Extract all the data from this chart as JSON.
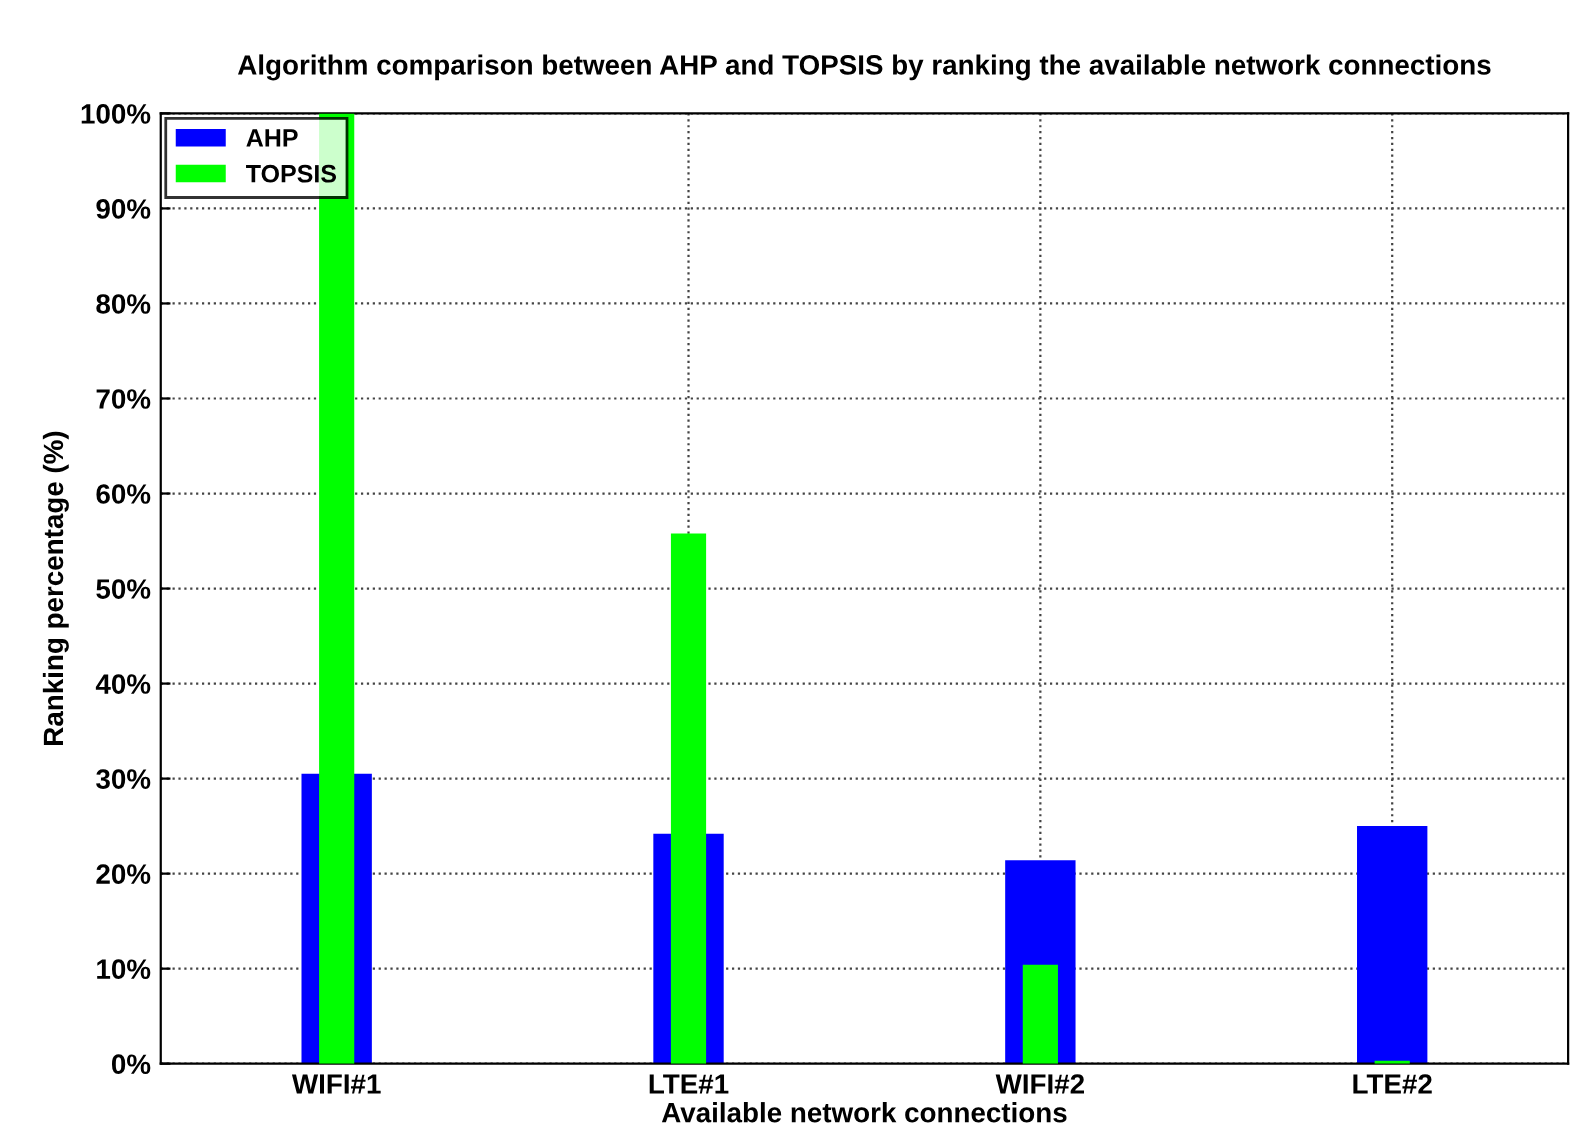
{
  "chart_data": {
    "type": "bar",
    "title": "Algorithm comparison between AHP and TOPSIS by ranking the available network connections",
    "xlabel": "Available network connections",
    "ylabel": "Ranking percentage (%)",
    "categories": [
      "WIFI#1",
      "LTE#1",
      "WIFI#2",
      "LTE#2"
    ],
    "series": [
      {
        "name": "AHP",
        "color": "#0000ff",
        "values": [
          30.5,
          24.2,
          21.4,
          25
        ]
      },
      {
        "name": "TOPSIS",
        "color": "#00ff00",
        "values": [
          100,
          55.8,
          10.4,
          0.3
        ]
      }
    ],
    "ylim": [
      0,
      100
    ],
    "yticks": [
      {
        "value": 0,
        "label": "0%"
      },
      {
        "value": 10,
        "label": "10%"
      },
      {
        "value": 20,
        "label": "20%"
      },
      {
        "value": 30,
        "label": "30%"
      },
      {
        "value": 40,
        "label": "40%"
      },
      {
        "value": 50,
        "label": "50%"
      },
      {
        "value": 60,
        "label": "60%"
      },
      {
        "value": 70,
        "label": "70%"
      },
      {
        "value": 80,
        "label": "80%"
      },
      {
        "value": 90,
        "label": "90%"
      },
      {
        "value": 100,
        "label": "100%"
      }
    ],
    "grid": true,
    "legend": "top left"
  }
}
